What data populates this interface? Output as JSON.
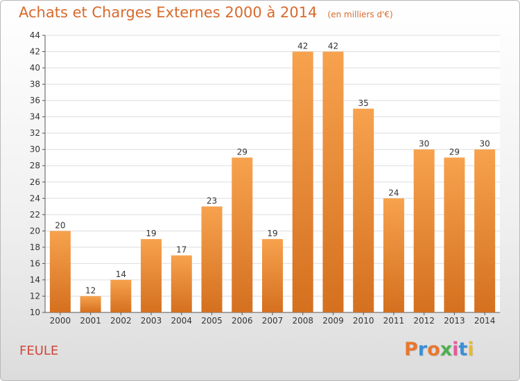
{
  "header": {
    "title": "Achats et Charges Externes 2000 à 2014",
    "subtitle": "(en milliers d'€)"
  },
  "footer": {
    "commune": "FEULE",
    "logo_text": "Proxiti",
    "logo_colors": [
      "#e8772e",
      "#3b8fd6",
      "#e8772e",
      "#4caf50",
      "#e35b9b",
      "#3b8fd6",
      "#e8b92e"
    ]
  },
  "colors": {
    "bar_light": "#f7a24e",
    "bar_dark": "#d4701f",
    "grid": "#dddddd",
    "axis": "#555555",
    "plot_background": "#ffffff"
  },
  "chart_data": {
    "type": "bar",
    "title": "Achats et Charges Externes 2000 à 2014",
    "subtitle": "(en milliers d'€)",
    "categories": [
      "2000",
      "2001",
      "2002",
      "2003",
      "2004",
      "2005",
      "2006",
      "2007",
      "2008",
      "2009",
      "2010",
      "2011",
      "2012",
      "2013",
      "2014"
    ],
    "values": [
      20,
      12,
      14,
      19,
      17,
      23,
      29,
      19,
      42,
      42,
      35,
      24,
      30,
      29,
      30
    ],
    "ylim": [
      10,
      44
    ],
    "ytick_step": 2,
    "grid": true,
    "data_labels": true
  }
}
